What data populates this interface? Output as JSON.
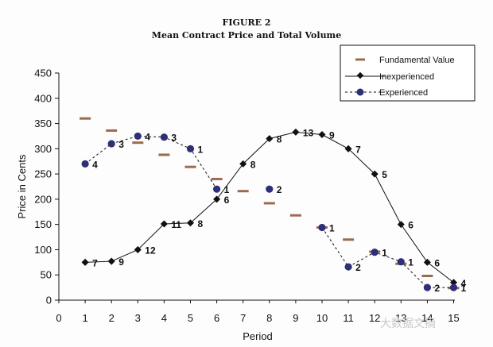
{
  "figure": {
    "label": "FIGURE 2",
    "title": "Mean Contract Price and Total Volume"
  },
  "watermark": "大数据文摘",
  "colors": {
    "fundamental": "#9c6a4e",
    "inexperienced": "#111111",
    "experienced": "#2e2f78"
  },
  "chart_data": {
    "type": "line",
    "title": "Mean Contract Price and Total Volume",
    "xlabel": "Period",
    "ylabel": "Price in Cents",
    "xlim": [
      0,
      15
    ],
    "ylim": [
      0,
      450
    ],
    "xticks": [
      0,
      1,
      2,
      3,
      4,
      5,
      6,
      7,
      8,
      9,
      10,
      11,
      12,
      13,
      14,
      15
    ],
    "yticks": [
      0,
      50,
      100,
      150,
      200,
      250,
      300,
      350,
      400,
      450
    ],
    "grid": false,
    "legend_position": "top-right",
    "series": [
      {
        "name": "Fundamental Value",
        "style": "dash-marker",
        "x": [
          1,
          2,
          3,
          4,
          5,
          6,
          7,
          8,
          9,
          10,
          11,
          12,
          13,
          14,
          15
        ],
        "y": [
          360,
          336,
          312,
          288,
          264,
          240,
          216,
          192,
          168,
          144,
          120,
          96,
          72,
          48,
          24
        ]
      },
      {
        "name": "Inexperienced",
        "style": "solid-diamond",
        "x": [
          1,
          2,
          3,
          4,
          5,
          6,
          7,
          8,
          9,
          10,
          11,
          12,
          13,
          14,
          15
        ],
        "y": [
          75,
          77,
          100,
          151,
          153,
          200,
          270,
          320,
          333,
          328,
          300,
          250,
          150,
          75,
          35
        ],
        "volume_labels": [
          "7",
          "9",
          "12",
          "11",
          "8",
          "6",
          "8",
          "8",
          "13",
          "9",
          "7",
          "5",
          "6",
          "6",
          "4"
        ]
      },
      {
        "name": "Experienced",
        "style": "dashed-circle",
        "segments": [
          {
            "x": [
              1,
              2,
              3,
              4,
              5,
              6
            ],
            "y": [
              270,
              310,
              325,
              323,
              300,
              220
            ],
            "volume_labels": [
              "4",
              "3",
              "4",
              "3",
              "1",
              "1"
            ]
          },
          {
            "x": [
              8
            ],
            "y": [
              220
            ],
            "volume_labels": [
              "2"
            ]
          },
          {
            "x": [
              10,
              11,
              12,
              13,
              14,
              15
            ],
            "y": [
              144,
              66,
              95,
              76,
              25,
              25
            ],
            "volume_labels": [
              "1",
              "2",
              "1",
              "1",
              "2",
              "1"
            ]
          }
        ]
      }
    ]
  }
}
